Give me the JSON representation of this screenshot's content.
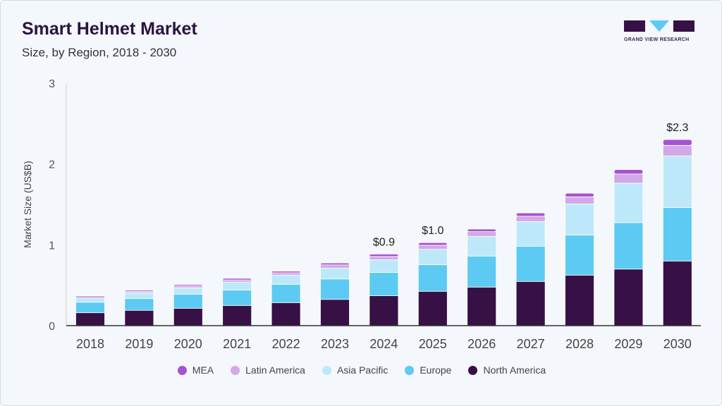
{
  "header": {
    "title": "Smart Helmet Market",
    "subtitle": "Size, by Region, 2018 - 2030",
    "logo_text": "GRAND VIEW RESEARCH"
  },
  "chart_data": {
    "type": "bar",
    "stacked": true,
    "title": "Smart Helmet Market",
    "subtitle": "Size, by Region, 2018 - 2030",
    "xlabel": "",
    "ylabel": "Market Size (US$B)",
    "ylim": [
      0,
      3
    ],
    "yticks": [
      "0",
      "1",
      "2",
      "3"
    ],
    "categories": [
      "2018",
      "2019",
      "2020",
      "2021",
      "2022",
      "2023",
      "2024",
      "2025",
      "2026",
      "2027",
      "2028",
      "2029",
      "2030"
    ],
    "series": [
      {
        "name": "North America",
        "color": "#371046",
        "values": [
          0.16,
          0.19,
          0.215,
          0.25,
          0.285,
          0.325,
          0.37,
          0.425,
          0.477,
          0.547,
          0.625,
          0.7,
          0.8
        ]
      },
      {
        "name": "Europe",
        "color": "#5ccaf3",
        "values": [
          0.13,
          0.145,
          0.175,
          0.19,
          0.227,
          0.253,
          0.288,
          0.33,
          0.384,
          0.436,
          0.497,
          0.575,
          0.66
        ]
      },
      {
        "name": "Asia Pacific",
        "color": "#bde8f9",
        "values": [
          0.05,
          0.073,
          0.078,
          0.1,
          0.113,
          0.134,
          0.157,
          0.19,
          0.244,
          0.305,
          0.384,
          0.488,
          0.64
        ]
      },
      {
        "name": "Latin America",
        "color": "#d3a8e6",
        "values": [
          0.03,
          0.017,
          0.023,
          0.026,
          0.029,
          0.04,
          0.04,
          0.05,
          0.058,
          0.066,
          0.087,
          0.113,
          0.13
        ]
      },
      {
        "name": "MEA",
        "color": "#a552d3",
        "values": [
          0.005,
          0.014,
          0.017,
          0.02,
          0.02,
          0.023,
          0.03,
          0.032,
          0.032,
          0.041,
          0.046,
          0.055,
          0.073
        ]
      }
    ],
    "annotations": [
      {
        "category": "2024",
        "label": "$0.9"
      },
      {
        "category": "2025",
        "label": "$1.0"
      },
      {
        "category": "2030",
        "label": "$2.3"
      }
    ],
    "legend": {
      "placement": "bottom",
      "order": [
        "MEA",
        "Latin America",
        "Asia Pacific",
        "Europe",
        "North America"
      ]
    },
    "grid": false
  }
}
